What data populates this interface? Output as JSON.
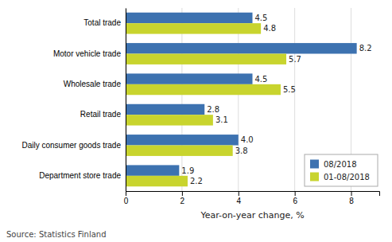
{
  "chart_data": {
    "type": "bar",
    "orientation": "horizontal",
    "categories": [
      "Total trade",
      "Motor vehicle trade",
      "Wholesale trade",
      "Retail trade",
      "Daily consumer goods trade",
      "Department store trade"
    ],
    "series": [
      {
        "name": "08/2018",
        "color": "#3d72b0",
        "values": [
          4.5,
          8.2,
          4.5,
          2.8,
          4.0,
          1.9
        ],
        "value_labels": [
          "4.5",
          "8.2",
          "4.5",
          "2.8",
          "4.0",
          "1.9"
        ]
      },
      {
        "name": "01-08/2018",
        "color": "#c8d42e",
        "values": [
          4.8,
          5.7,
          5.5,
          3.1,
          3.8,
          2.2
        ],
        "value_labels": [
          "4.8",
          "5.7",
          "5.5",
          "3.1",
          "3.8",
          "2.2"
        ]
      }
    ],
    "xlabel": "Year-on-year change, %",
    "xlim": [
      0,
      9
    ],
    "xticks": [
      0,
      2,
      4,
      6,
      8
    ],
    "grid": true,
    "legend": "lower right",
    "data_labels": true,
    "annotations": [
      "Source: Statistics Finland"
    ]
  }
}
